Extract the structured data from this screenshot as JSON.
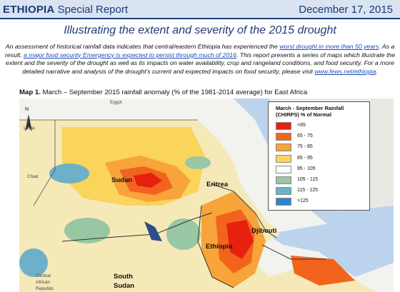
{
  "header": {
    "country": "ETHIOPIA",
    "report_type": "Special Report",
    "date": "December 17, 2015"
  },
  "title": "Illustrating the extent and severity of the 2015 drought",
  "intro": {
    "part1": "An assessment of historical rainfall data indicates that central/eastern Ethiopia has experienced the ",
    "link1": "worst drought in more than 50 years",
    "part2": ". As a result, ",
    "link2": "a major food security Emergency is expected to persist through much of 2016",
    "part3": ". This report presents a series of maps which illustrate the extent and the severity of the drought as well as its impacts on water availability, crop and rangeland conditions, and food security. For a more detailed narrative and analysis of the drought's current and expected impacts on food security, please visit ",
    "link3": "www.fews.net/ethiopia",
    "part4": "."
  },
  "map": {
    "caption_label": "Map 1.",
    "caption_text": " March – September 2015 rainfall anomaly (% of the 1981-2014 average) for East Africa",
    "labels": {
      "egypt": "Egypt",
      "libya": "Libya",
      "chad": "Chad",
      "sudan": "Sudan",
      "eritrea": "Eritrea",
      "djibouti": "Djibouti",
      "ethiopia": "Ethiopia",
      "south_sudan_1": "South",
      "south_sudan_2": "Sudan",
      "car_1": "Central",
      "car_2": "African",
      "car_3": "Republic"
    },
    "north_label": "N",
    "legend": {
      "title": "March - September Rainfall (CHIRPS) % of Normal",
      "items": [
        {
          "label": "<65",
          "color": "#e8200f"
        },
        {
          "label": "65 - 75",
          "color": "#f2641e"
        },
        {
          "label": "75 - 85",
          "color": "#f7a43a"
        },
        {
          "label": "85 - 95",
          "color": "#fad45b"
        },
        {
          "label": "95 - 105",
          "color": "#ffffff"
        },
        {
          "label": "105 - 115",
          "color": "#98c7a4"
        },
        {
          "label": "115 - 125",
          "color": "#6cb1c8"
        },
        {
          "label": ">125",
          "color": "#2f86c6"
        }
      ]
    }
  }
}
